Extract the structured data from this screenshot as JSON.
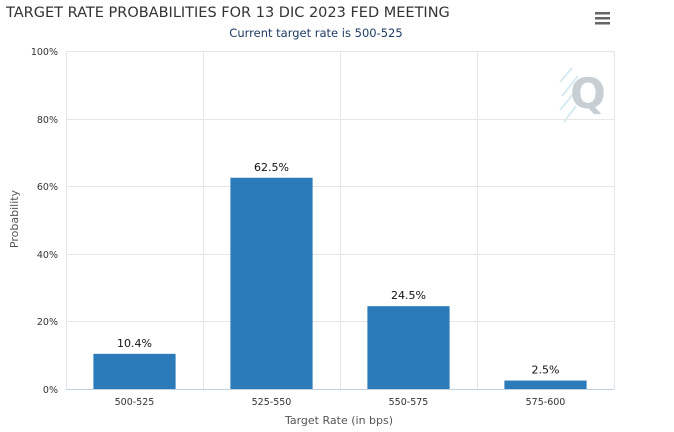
{
  "chart_data": {
    "type": "bar",
    "title": "TARGET RATE PROBABILITIES FOR 13 DIC 2023 FED MEETING",
    "subtitle": "Current target rate is 500-525",
    "xlabel": "Target Rate (in bps)",
    "ylabel": "Probability",
    "categories": [
      "500-525",
      "525-550",
      "550-575",
      "575-600"
    ],
    "values": [
      10.4,
      62.5,
      24.5,
      2.5
    ],
    "data_labels": [
      "10.4%",
      "62.5%",
      "24.5%",
      "2.5%"
    ],
    "ylim": [
      0,
      100
    ],
    "yticks": [
      0,
      20,
      40,
      60,
      80,
      100
    ],
    "ytick_labels": [
      "0%",
      "20%",
      "40%",
      "60%",
      "80%",
      "100%"
    ],
    "grid": true,
    "bar_color": "#2b7bba"
  },
  "toolbar": {
    "menu_icon": "hamburger-menu-icon"
  },
  "watermark": {
    "icon": "q-logo-watermark",
    "text": "Q"
  }
}
